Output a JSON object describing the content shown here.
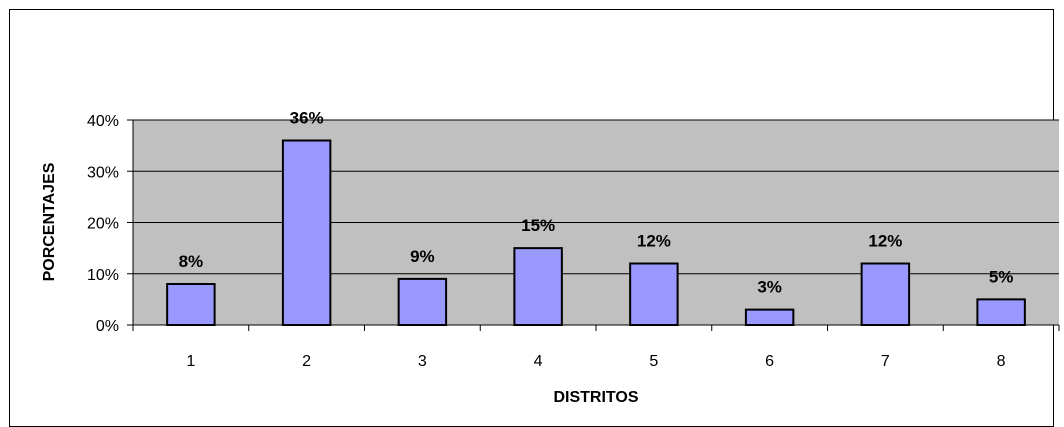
{
  "chart_data": {
    "type": "bar",
    "title": "",
    "xlabel": "DISTRITOS",
    "ylabel": "PORCENTAJES",
    "categories": [
      "1",
      "2",
      "3",
      "4",
      "5",
      "6",
      "7",
      "8"
    ],
    "values": [
      8,
      36,
      9,
      15,
      12,
      3,
      12,
      5
    ],
    "data_labels": [
      "8%",
      "36%",
      "9%",
      "15%",
      "12%",
      "3%",
      "12%",
      "5%"
    ],
    "ylim": [
      0,
      40
    ],
    "yticks": [
      0,
      10,
      20,
      30,
      40
    ],
    "ytick_labels": [
      "0%",
      "10%",
      "20%",
      "30%",
      "40%"
    ],
    "grid": true,
    "legend": "none",
    "colors": {
      "bar_fill": "#9999ff",
      "bar_stroke": "#000000",
      "plot_background": "#c0c0c0",
      "gridline": "#000000"
    }
  }
}
